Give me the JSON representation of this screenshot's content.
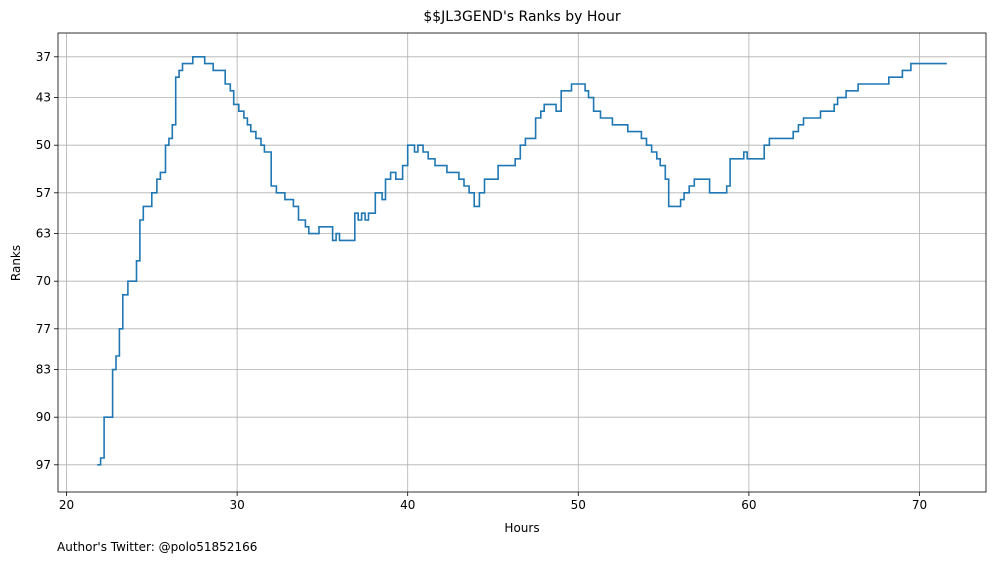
{
  "chart_data": {
    "type": "line",
    "step": true,
    "title": "$$JL3GEND's Ranks by Hour",
    "xlabel": "Hours",
    "ylabel": "Ranks",
    "xlim": [
      19.5,
      73.9
    ],
    "ylim": [
      101,
      33.5
    ],
    "y_inverted": true,
    "xticks": [
      20,
      30,
      40,
      50,
      60,
      70
    ],
    "yticks": [
      37,
      43,
      50,
      57,
      63,
      70,
      77,
      83,
      90,
      97
    ],
    "grid": true,
    "line_color": "#1f77b4",
    "points": [
      [
        21.8,
        97
      ],
      [
        22.0,
        96
      ],
      [
        22.2,
        90
      ],
      [
        22.7,
        83
      ],
      [
        22.9,
        81
      ],
      [
        23.1,
        77
      ],
      [
        23.3,
        72
      ],
      [
        23.6,
        70
      ],
      [
        24.1,
        67
      ],
      [
        24.3,
        61
      ],
      [
        24.5,
        59
      ],
      [
        25.0,
        57
      ],
      [
        25.3,
        55
      ],
      [
        25.5,
        54
      ],
      [
        25.8,
        50
      ],
      [
        26.0,
        49
      ],
      [
        26.2,
        47
      ],
      [
        26.4,
        40
      ],
      [
        26.6,
        39
      ],
      [
        26.8,
        38
      ],
      [
        27.1,
        38
      ],
      [
        27.4,
        37
      ],
      [
        27.9,
        37
      ],
      [
        28.1,
        38
      ],
      [
        28.5,
        38
      ],
      [
        28.6,
        39
      ],
      [
        29.3,
        41
      ],
      [
        29.6,
        42
      ],
      [
        29.8,
        44
      ],
      [
        30.1,
        45
      ],
      [
        30.4,
        46
      ],
      [
        30.6,
        47
      ],
      [
        30.8,
        48
      ],
      [
        31.1,
        49
      ],
      [
        31.4,
        50
      ],
      [
        31.6,
        51
      ],
      [
        32.0,
        56
      ],
      [
        32.3,
        57
      ],
      [
        32.8,
        58
      ],
      [
        33.3,
        59
      ],
      [
        33.6,
        61
      ],
      [
        34.0,
        62
      ],
      [
        34.2,
        63
      ],
      [
        34.6,
        63
      ],
      [
        34.8,
        62
      ],
      [
        35.3,
        62
      ],
      [
        35.6,
        64
      ],
      [
        35.8,
        63
      ],
      [
        36.0,
        64
      ],
      [
        36.6,
        64
      ],
      [
        36.9,
        60
      ],
      [
        37.1,
        61
      ],
      [
        37.3,
        60
      ],
      [
        37.5,
        61
      ],
      [
        37.7,
        60
      ],
      [
        37.9,
        60
      ],
      [
        38.1,
        57
      ],
      [
        38.5,
        58
      ],
      [
        38.7,
        55
      ],
      [
        39.0,
        54
      ],
      [
        39.3,
        55
      ],
      [
        39.7,
        53
      ],
      [
        40.0,
        50
      ],
      [
        40.4,
        51
      ],
      [
        40.6,
        50
      ],
      [
        40.9,
        51
      ],
      [
        41.2,
        52
      ],
      [
        41.6,
        53
      ],
      [
        41.8,
        53
      ],
      [
        42.3,
        54
      ],
      [
        43.0,
        55
      ],
      [
        43.3,
        56
      ],
      [
        43.6,
        57
      ],
      [
        43.9,
        59
      ],
      [
        44.2,
        57
      ],
      [
        44.5,
        55
      ],
      [
        44.9,
        55
      ],
      [
        45.3,
        53
      ],
      [
        46.0,
        53
      ],
      [
        46.3,
        52
      ],
      [
        46.6,
        50
      ],
      [
        46.9,
        49
      ],
      [
        47.5,
        46
      ],
      [
        47.8,
        45
      ],
      [
        48.0,
        44
      ],
      [
        48.7,
        45
      ],
      [
        49.0,
        42
      ],
      [
        49.6,
        41
      ],
      [
        50.4,
        42
      ],
      [
        50.6,
        43
      ],
      [
        50.9,
        45
      ],
      [
        51.3,
        46
      ],
      [
        52.0,
        47
      ],
      [
        52.9,
        48
      ],
      [
        53.2,
        48
      ],
      [
        53.7,
        49
      ],
      [
        54.0,
        50
      ],
      [
        54.3,
        51
      ],
      [
        54.6,
        52
      ],
      [
        54.8,
        53
      ],
      [
        55.1,
        55
      ],
      [
        55.3,
        59
      ],
      [
        56.0,
        58
      ],
      [
        56.2,
        57
      ],
      [
        56.5,
        56
      ],
      [
        56.8,
        55
      ],
      [
        57.7,
        57
      ],
      [
        58.7,
        56
      ],
      [
        58.9,
        52
      ],
      [
        59.7,
        51
      ],
      [
        59.9,
        52
      ],
      [
        60.9,
        50
      ],
      [
        61.2,
        49
      ],
      [
        62.6,
        48
      ],
      [
        62.9,
        47
      ],
      [
        63.2,
        46
      ],
      [
        64.2,
        45
      ],
      [
        65.0,
        44
      ],
      [
        65.2,
        43
      ],
      [
        65.7,
        42
      ],
      [
        66.4,
        41
      ],
      [
        68.2,
        40
      ],
      [
        69.0,
        39
      ],
      [
        69.5,
        38
      ],
      [
        71.6,
        38
      ]
    ],
    "annotation": "Author's Twitter: @polo51852166"
  }
}
